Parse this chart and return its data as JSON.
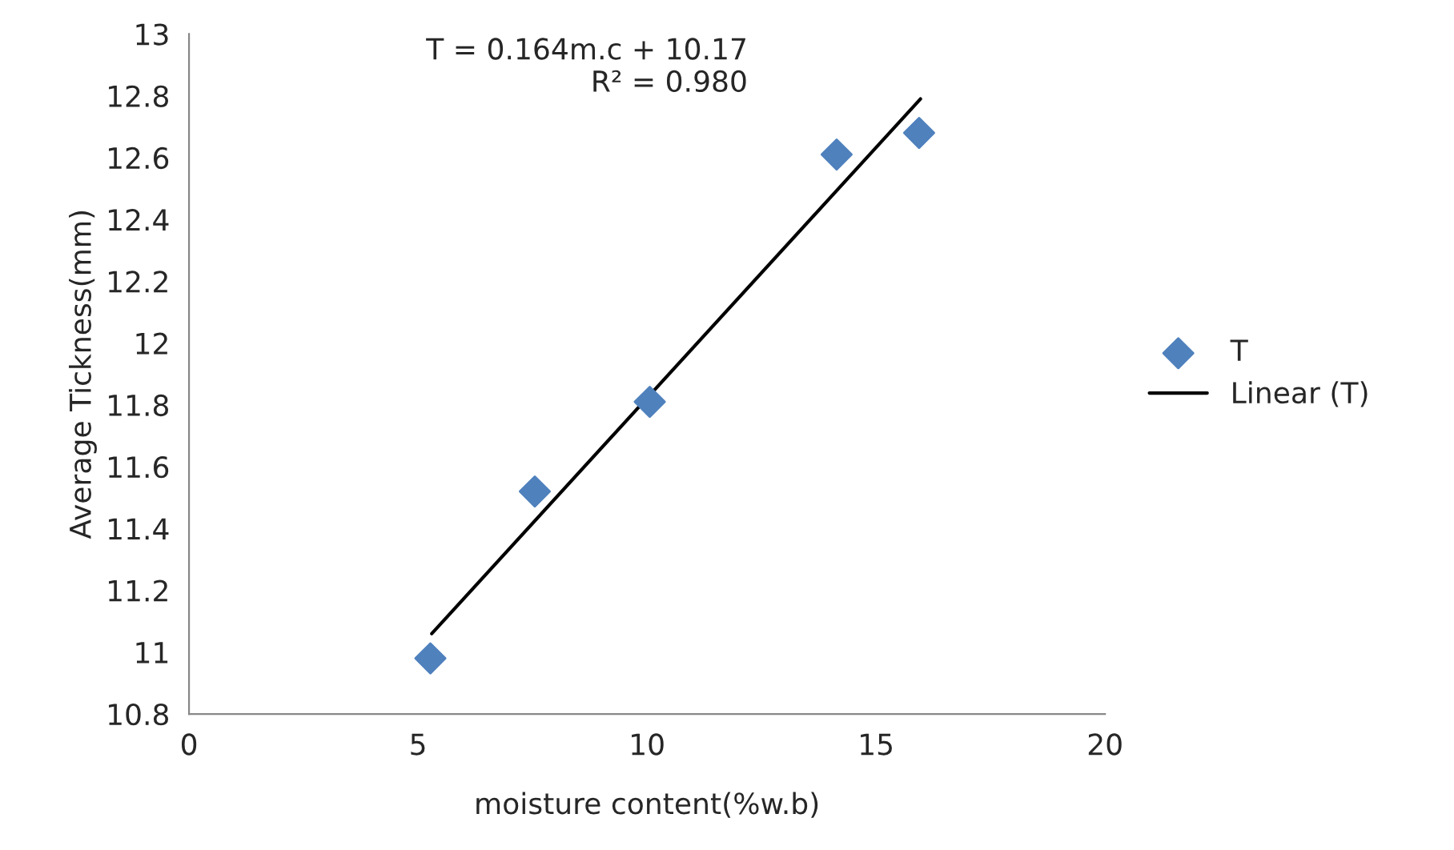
{
  "chart_data": {
    "type": "scatter",
    "xlabel": "moisture content(%w.b)",
    "ylabel": "Average Tickness(mm)",
    "xlim": [
      0,
      20
    ],
    "xticks": [
      0,
      5,
      10,
      15,
      20
    ],
    "ylim": [
      10.8,
      13
    ],
    "yticks": [
      {
        "value": 10.8,
        "label": "10.8"
      },
      {
        "value": 11,
        "label": "11"
      },
      {
        "value": 11.2,
        "label": "11.2"
      },
      {
        "value": 11.4,
        "label": "11.4"
      },
      {
        "value": 11.6,
        "label": "11.6"
      },
      {
        "value": 11.8,
        "label": "11.8"
      },
      {
        "value": 12,
        "label": "12"
      },
      {
        "value": 12.2,
        "label": "12.2"
      },
      {
        "value": 12.4,
        "label": "12.4"
      },
      {
        "value": 12.6,
        "label": "12.6"
      },
      {
        "value": 12.8,
        "label": "12.8"
      },
      {
        "value": 13,
        "label": "13"
      }
    ],
    "grid": false,
    "legend": "right",
    "series": [
      {
        "name": "T",
        "marker": "diamond",
        "color": "#4f81bd",
        "x": [
          5.27,
          7.55,
          10.06,
          14.14,
          15.94
        ],
        "values": [
          10.98,
          11.52,
          11.81,
          12.61,
          12.68
        ]
      },
      {
        "name": "Linear (T)",
        "type": "line",
        "marker": "none",
        "color": "#000000",
        "x": [
          5.3,
          15.97
        ],
        "values": [
          11.06,
          12.79
        ]
      }
    ],
    "annotations": [
      "T = 0.164m.c + 10.17\nR² = 0.980"
    ]
  }
}
